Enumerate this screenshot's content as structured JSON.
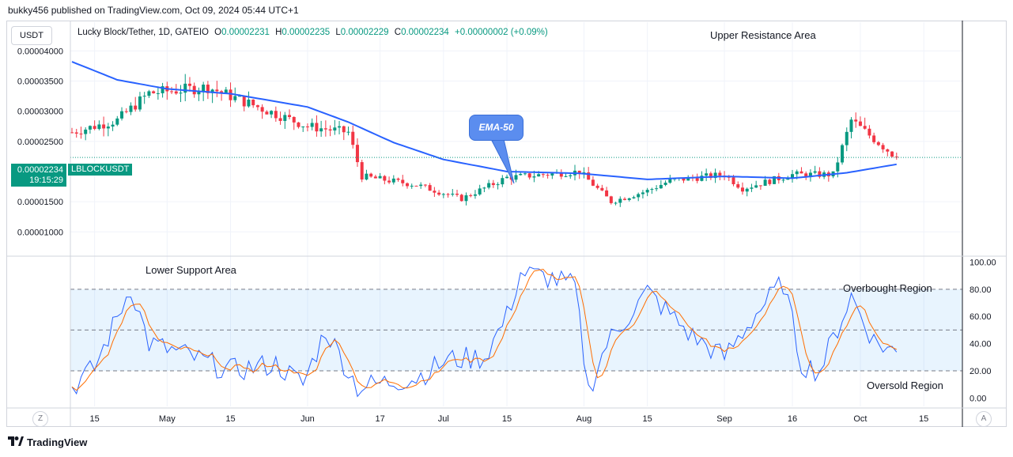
{
  "header": "bukky456 published on TradingView.com, Oct 09, 2024 05:44 UTC+1",
  "currency_button": "USDT",
  "legend": {
    "symbol": "Lucky Block/Tether, 1D, GATEIO",
    "o_label": "O",
    "o_value": "0.00002231",
    "h_label": "H",
    "h_value": "0.00002235",
    "l_label": "L",
    "l_value": "0.00002229",
    "c_label": "C",
    "c_value": "0.00002234",
    "change": "+0.00000002 (+0.09%)"
  },
  "price_tag": {
    "price": "0.00002234",
    "countdown": "19:15:29",
    "ticker": "LBLOCKUSDT"
  },
  "annotations": {
    "upper": "Upper Resistance Area",
    "lower": "Lower Support Area",
    "overbought": "Overbought Region",
    "oversold": "Oversold Region",
    "ema": "EMA-50"
  },
  "footer": {
    "brand": "TradingView"
  },
  "buttons": {
    "left": "Z",
    "right": "A"
  },
  "colors": {
    "up": "#089981",
    "down": "#f23645",
    "ema": "#2962ff",
    "rsi": "#2962ff",
    "rsi_ma": "#ff6d00",
    "band": "#2196f3"
  },
  "chart_data": [
    {
      "type": "candlestick",
      "title": "Lucky Block/Tether, 1D, GATEIO",
      "y_ticks": [
        "0.00004000",
        "0.00003500",
        "0.00003000",
        "0.00002500",
        "0.00001500",
        "0.00001000"
      ],
      "x_ticks": [
        "15",
        "May",
        "15",
        "Jun",
        "17",
        "Jul",
        "15",
        "Aug",
        "15",
        "Sep",
        "16",
        "Oct",
        "15"
      ],
      "ylim": [
        6.5e-06,
        4.45e-05
      ],
      "x_range": [
        "2024-04-10",
        "2024-10-23"
      ],
      "last_close": 2.234e-05,
      "ema50": {
        "name": "EMA-50",
        "points": [
          [
            "2024-04-10",
            3.82e-05
          ],
          [
            "2024-04-20",
            3.52e-05
          ],
          [
            "2024-05-01",
            3.37e-05
          ],
          [
            "2024-05-15",
            3.29e-05
          ],
          [
            "2024-06-01",
            3.07e-05
          ],
          [
            "2024-06-10",
            2.82e-05
          ],
          [
            "2024-06-20",
            2.48e-05
          ],
          [
            "2024-07-01",
            2.2e-05
          ],
          [
            "2024-07-15",
            2e-05
          ],
          [
            "2024-07-31",
            1.97e-05
          ],
          [
            "2024-08-15",
            1.87e-05
          ],
          [
            "2024-09-01",
            1.92e-05
          ],
          [
            "2024-09-16",
            1.89e-05
          ],
          [
            "2024-09-28",
            1.98e-05
          ],
          [
            "2024-10-09",
            2.12e-05
          ]
        ]
      },
      "anchors": [
        [
          "2024-04-10",
          2.65e-05
        ],
        [
          "2024-04-20",
          2.85e-05
        ],
        [
          "2024-04-27",
          3.3e-05
        ],
        [
          "2024-05-10",
          3.4e-05
        ],
        [
          "2024-05-20",
          3.1e-05
        ],
        [
          "2024-06-01",
          2.75e-05
        ],
        [
          "2024-06-10",
          2.65e-05
        ],
        [
          "2024-06-13",
          1.92e-05
        ],
        [
          "2024-06-25",
          1.78e-05
        ],
        [
          "2024-07-05",
          1.55e-05
        ],
        [
          "2024-07-15",
          1.9e-05
        ],
        [
          "2024-07-31",
          2e-05
        ],
        [
          "2024-08-07",
          1.5e-05
        ],
        [
          "2024-08-15",
          1.68e-05
        ],
        [
          "2024-08-20",
          1.85e-05
        ],
        [
          "2024-09-01",
          1.95e-05
        ],
        [
          "2024-09-05",
          1.72e-05
        ],
        [
          "2024-09-16",
          1.95e-05
        ],
        [
          "2024-09-25",
          1.95e-05
        ],
        [
          "2024-09-29",
          2.85e-05
        ],
        [
          "2024-10-09",
          2.23e-05
        ]
      ]
    },
    {
      "type": "line",
      "title": "RSI",
      "y_ticks": [
        "100.00",
        "80.00",
        "60.00",
        "40.00",
        "20.00",
        "0.00"
      ],
      "ylim": [
        -5,
        102
      ],
      "overbought": 80,
      "midline": 50,
      "oversold": 20,
      "anchors": [
        [
          "2024-04-10",
          8
        ],
        [
          "2024-04-15",
          22
        ],
        [
          "2024-04-23",
          82
        ],
        [
          "2024-04-27",
          40
        ],
        [
          "2024-05-05",
          32
        ],
        [
          "2024-05-15",
          20
        ],
        [
          "2024-05-25",
          25
        ],
        [
          "2024-05-31",
          10
        ],
        [
          "2024-06-05",
          50
        ],
        [
          "2024-06-12",
          8
        ],
        [
          "2024-06-25",
          15
        ],
        [
          "2024-07-02",
          28
        ],
        [
          "2024-07-10",
          30
        ],
        [
          "2024-07-15",
          60
        ],
        [
          "2024-07-18",
          92
        ],
        [
          "2024-07-25",
          88
        ],
        [
          "2024-07-30",
          82
        ],
        [
          "2024-08-02",
          5
        ],
        [
          "2024-08-06",
          40
        ],
        [
          "2024-08-15",
          78
        ],
        [
          "2024-08-25",
          45
        ],
        [
          "2024-09-01",
          30
        ],
        [
          "2024-09-08",
          62
        ],
        [
          "2024-09-14",
          85
        ],
        [
          "2024-09-18",
          25
        ],
        [
          "2024-09-22",
          20
        ],
        [
          "2024-09-29",
          75
        ],
        [
          "2024-10-04",
          42
        ],
        [
          "2024-10-09",
          33
        ]
      ]
    }
  ]
}
